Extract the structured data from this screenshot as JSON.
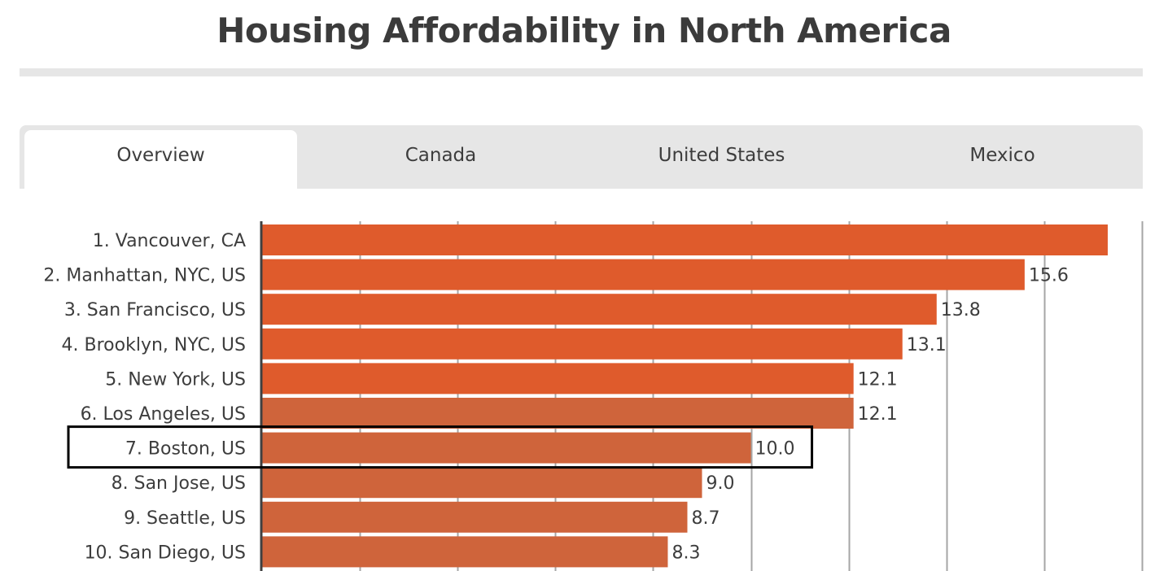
{
  "header": {
    "title": "Housing Affordability in North America"
  },
  "tabs": [
    {
      "label": "Overview",
      "active": true
    },
    {
      "label": "Canada",
      "active": false
    },
    {
      "label": "United States",
      "active": false
    },
    {
      "label": "Mexico",
      "active": false
    }
  ],
  "colors": {
    "bar_primary": "#DF5B2C",
    "bar_secondary": "#CF643B",
    "gridline": "#a6a6a6",
    "axis": "#404040",
    "highlight_box": "#000000",
    "tab_background": "#e6e6e6"
  },
  "chart_data": {
    "type": "bar",
    "orientation": "horizontal",
    "title": "Housing Affordability in North America",
    "xlabel": "",
    "ylabel": "",
    "xlim": [
      0,
      18
    ],
    "grid": true,
    "grid_interval": 2,
    "categories": [
      "1. Vancouver, CA",
      "2. Manhattan, NYC, US",
      "3. San Francisco, US",
      "4. Brooklyn, NYC, US",
      "5. New York, US",
      "6. Los Angeles, US",
      "7. Boston, US",
      "8. San Jose, US",
      "9. Seattle, US",
      "10. San Diego, US"
    ],
    "values": [
      17.3,
      15.6,
      13.8,
      13.1,
      12.1,
      12.1,
      10.0,
      9.0,
      8.7,
      8.3
    ],
    "value_labels": [
      "",
      "15.6",
      "13.8",
      "13.1",
      "12.1",
      "12.1",
      "10.0",
      "9.0",
      "8.7",
      "8.3"
    ],
    "color_group": [
      "primary",
      "primary",
      "primary",
      "primary",
      "primary",
      "secondary",
      "secondary",
      "secondary",
      "secondary",
      "secondary"
    ],
    "highlighted_category": "7. Boston, US",
    "legend": null
  }
}
